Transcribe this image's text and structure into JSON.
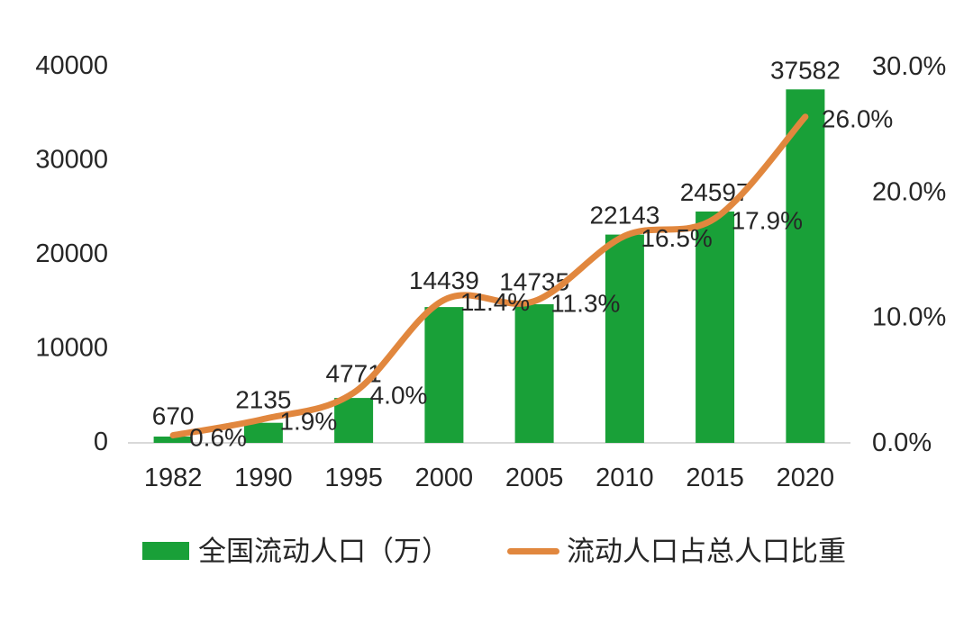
{
  "chart_data": {
    "type": "combo-bar-line",
    "title": "",
    "categories": [
      "1982",
      "1990",
      "1995",
      "2000",
      "2005",
      "2010",
      "2015",
      "2020"
    ],
    "series": [
      {
        "name": "全国流动人口（万）",
        "type": "bar",
        "axis": "left",
        "color": "#19A038",
        "values": [
          670,
          2135,
          4771,
          14439,
          14735,
          22143,
          24597,
          37582
        ],
        "data_labels": [
          "670",
          "2135",
          "4771",
          "14439",
          "14735",
          "22143",
          "24597",
          "37582"
        ]
      },
      {
        "name": "流动人口占总人口比重",
        "type": "line",
        "axis": "right",
        "color": "#E1873E",
        "values": [
          0.6,
          1.9,
          4.0,
          11.4,
          11.3,
          16.5,
          17.9,
          26.0
        ],
        "data_labels": [
          "0.6%",
          "1.9%",
          "4.0%",
          "11.4%",
          "11.3%",
          "16.5%",
          "17.9%",
          "26.0%"
        ]
      }
    ],
    "left_axis": {
      "min": 0,
      "max": 40000,
      "tick_values": [
        0,
        10000,
        20000,
        30000,
        40000
      ],
      "tick_labels": [
        "0",
        "10000",
        "20000",
        "30000",
        "40000"
      ]
    },
    "right_axis": {
      "min": 0,
      "max": 30,
      "tick_values": [
        0,
        10,
        20,
        30
      ],
      "tick_labels": [
        "0.0%",
        "10.0%",
        "20.0%",
        "30.0%"
      ]
    },
    "grid": false,
    "legend_position": "bottom"
  },
  "colors": {
    "background": "#FFFFFF",
    "text": "#262626",
    "axis_line": "#D9D9D9",
    "bar": "#19A038",
    "line": "#E1873E"
  }
}
